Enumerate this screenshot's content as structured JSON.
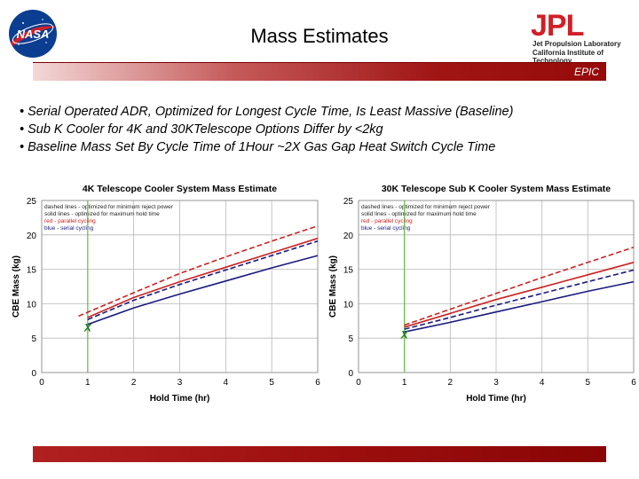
{
  "header": {
    "title": "Mass Estimates",
    "epic_label": "EPIC",
    "jpl_name": "Jet Propulsion Laboratory",
    "jpl_institute": "California Institute of Technology",
    "nasa_logo_text": "NASA",
    "jpl_logo_text": "JPL"
  },
  "bullets": [
    "• Serial Operated ADR, Optimized for Longest Cycle Time, Is Least Massive (Baseline)",
    "• Sub K Cooler for 4K and 30KTelescope Options Differ by <2kg",
    "• Baseline Mass Set By Cycle Time of 1Hour ~2X Gas Gap Heat Switch Cycle Time"
  ],
  "colors": {
    "red": "#cc2222",
    "blue": "#1a1a80",
    "vline": "#66bb44",
    "marker": "#1a7a1a"
  },
  "chart_data": [
    {
      "type": "line",
      "title": "4K Telescope Cooler System Mass Estimate",
      "xlabel": "Hold Time (hr)",
      "ylabel": "CBE Mass (kg)",
      "xlim": [
        0,
        6
      ],
      "ylim": [
        0,
        25
      ],
      "xticks": [
        0,
        1,
        2,
        3,
        4,
        5,
        6
      ],
      "yticks": [
        0,
        5,
        10,
        15,
        20,
        25
      ],
      "grid": true,
      "legend_lines": [
        "dashed lines - optimized for minimum reject power",
        "solid lines - optimized for maximum hold time",
        "red - parallel cycling",
        "blue - serial cycling"
      ],
      "vline_x": 1,
      "marker": {
        "x": 1,
        "y": 6.5,
        "label": "X"
      },
      "series": [
        {
          "style": "dashed",
          "color": "red",
          "x": [
            0.8,
            2,
            3,
            4,
            5,
            6
          ],
          "y": [
            8.2,
            11.6,
            14.4,
            16.8,
            19.1,
            21.3
          ]
        },
        {
          "style": "solid",
          "color": "red",
          "x": [
            1,
            2,
            3,
            4,
            5,
            6
          ],
          "y": [
            8.0,
            10.9,
            13.2,
            15.3,
            17.4,
            19.5
          ]
        },
        {
          "style": "dashed",
          "color": "blue",
          "x": [
            1,
            2,
            3,
            4,
            5,
            6
          ],
          "y": [
            7.7,
            10.5,
            12.8,
            14.9,
            17.0,
            19.1
          ]
        },
        {
          "style": "solid",
          "color": "blue",
          "x": [
            1,
            2,
            3,
            4,
            5,
            6
          ],
          "y": [
            7.0,
            9.4,
            11.4,
            13.3,
            15.2,
            17.0
          ]
        }
      ]
    },
    {
      "type": "line",
      "title": "30K Telescope Sub K Cooler System Mass Estimate",
      "xlabel": "Hold Time (hr)",
      "ylabel": "CBE Mass (kg)",
      "xlim": [
        0,
        6
      ],
      "ylim": [
        0,
        25
      ],
      "xticks": [
        0,
        1,
        2,
        3,
        4,
        5,
        6
      ],
      "yticks": [
        0,
        5,
        10,
        15,
        20,
        25
      ],
      "grid": true,
      "legend_lines": [
        "dashed lines - optimized for minimum reject power",
        "solid lines - optimized for maximum hold time",
        "red - parallel cycling",
        "blue - serial cycling"
      ],
      "vline_x": 1,
      "marker": {
        "x": 1,
        "y": 5.5,
        "label": "X"
      },
      "series": [
        {
          "style": "dashed",
          "color": "red",
          "x": [
            1,
            2,
            3,
            4,
            5,
            6
          ],
          "y": [
            6.9,
            9.2,
            11.5,
            13.8,
            16.0,
            18.2
          ]
        },
        {
          "style": "solid",
          "color": "red",
          "x": [
            1,
            2,
            3,
            4,
            5,
            6
          ],
          "y": [
            6.6,
            8.6,
            10.6,
            12.4,
            14.2,
            16.0
          ]
        },
        {
          "style": "dashed",
          "color": "blue",
          "x": [
            1,
            2,
            3,
            4,
            5,
            6
          ],
          "y": [
            6.3,
            8.0,
            9.8,
            11.5,
            13.2,
            14.9
          ]
        },
        {
          "style": "solid",
          "color": "blue",
          "x": [
            1,
            2,
            3,
            4,
            5,
            6
          ],
          "y": [
            5.9,
            7.3,
            8.8,
            10.3,
            11.8,
            13.2
          ]
        }
      ]
    }
  ]
}
